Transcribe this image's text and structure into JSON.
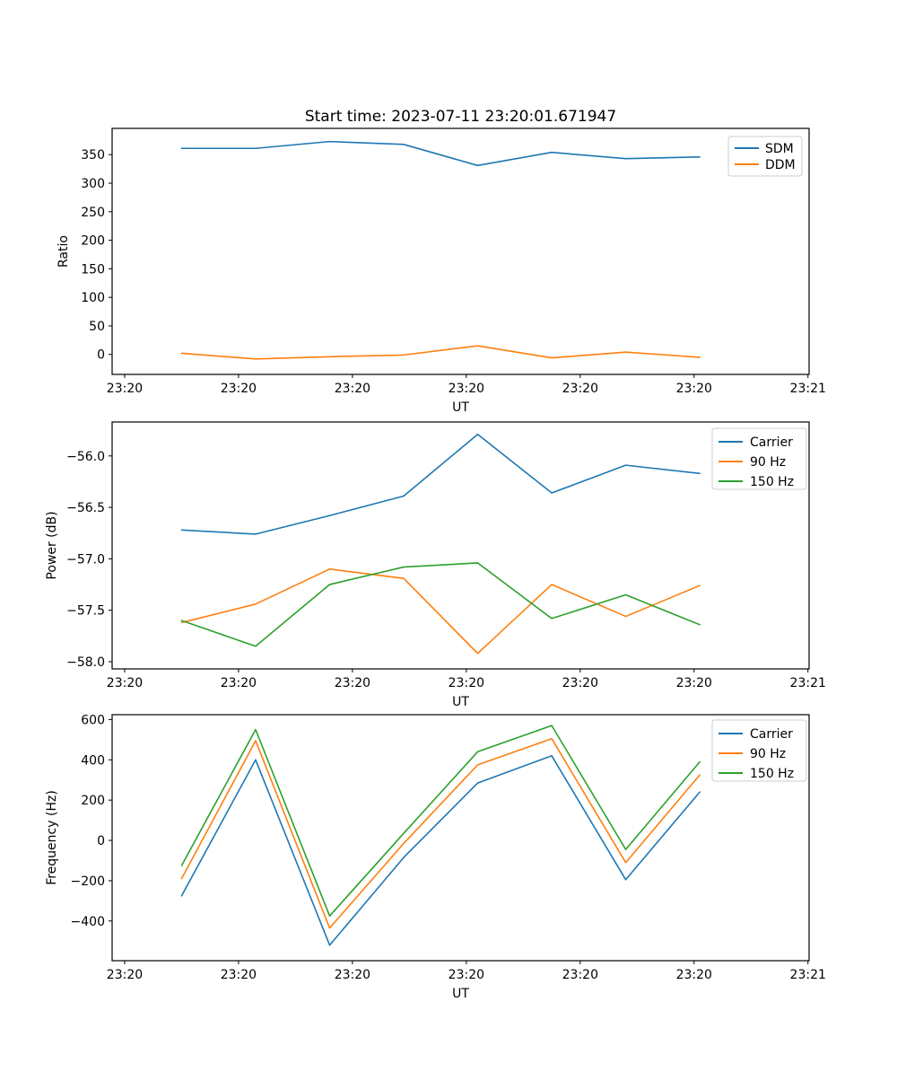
{
  "figure": {
    "title": "Start time: 2023-07-11 23:20:01.671947",
    "background": "#ffffff"
  },
  "colors": {
    "blue": "#1f77b4",
    "orange": "#ff7f0e",
    "green": "#2ca02c",
    "legend_edge": "#cccccc",
    "axis": "#000000"
  },
  "chart_data": [
    {
      "type": "line",
      "title": "Start time: 2023-07-11 23:20:01.671947",
      "xlabel": "UT",
      "ylabel": "Ratio",
      "grid": false,
      "legend_position": "upper right",
      "x_seconds_after_2320": [
        5.0,
        11.5,
        18.0,
        24.5,
        31.0,
        37.5,
        44.0,
        50.5
      ],
      "xlim": [
        -1.1,
        60.1
      ],
      "ylim": [
        -35,
        396
      ],
      "x_ticks": {
        "values": [
          0,
          10,
          20,
          30,
          40,
          50,
          60
        ],
        "labels": [
          "23:20",
          "23:20",
          "23:20",
          "23:20",
          "23:20",
          "23:20",
          "23:21"
        ]
      },
      "y_ticks": {
        "values": [
          0,
          50,
          100,
          150,
          200,
          250,
          300,
          350
        ],
        "labels": [
          "0",
          "50",
          "100",
          "150",
          "200",
          "250",
          "300",
          "350"
        ]
      },
      "series": [
        {
          "name": "SDM",
          "color": "#1f77b4",
          "values": [
            361,
            361,
            373,
            368,
            331,
            354,
            343,
            346
          ]
        },
        {
          "name": "DDM",
          "color": "#ff7f0e",
          "values": [
            2,
            -8,
            -4,
            -1,
            15,
            -6,
            4,
            -5
          ]
        }
      ]
    },
    {
      "type": "line",
      "title": "",
      "xlabel": "UT",
      "ylabel": "Power (dB)",
      "grid": false,
      "legend_position": "upper right",
      "x_seconds_after_2320": [
        5.0,
        11.5,
        18.0,
        24.5,
        31.0,
        37.5,
        44.0,
        50.5
      ],
      "xlim": [
        -1.1,
        60.1
      ],
      "ylim": [
        -58.07,
        -55.67
      ],
      "x_ticks": {
        "values": [
          0,
          10,
          20,
          30,
          40,
          50,
          60
        ],
        "labels": [
          "23:20",
          "23:20",
          "23:20",
          "23:20",
          "23:20",
          "23:20",
          "23:21"
        ]
      },
      "y_ticks": {
        "values": [
          -56.0,
          -56.5,
          -57.0,
          -57.5,
          -58.0
        ],
        "labels": [
          "−56.0",
          "−56.5",
          "−57.0",
          "−57.5",
          "−58.0"
        ]
      },
      "series": [
        {
          "name": "Carrier",
          "color": "#1f77b4",
          "values": [
            -56.72,
            -56.76,
            -56.58,
            -56.39,
            -55.79,
            -56.36,
            -56.09,
            -56.17
          ]
        },
        {
          "name": "90 Hz",
          "color": "#ff7f0e",
          "values": [
            -57.62,
            -57.44,
            -57.1,
            -57.19,
            -57.92,
            -57.25,
            -57.56,
            -57.26
          ]
        },
        {
          "name": "150 Hz",
          "color": "#2ca02c",
          "values": [
            -57.6,
            -57.85,
            -57.25,
            -57.08,
            -57.04,
            -57.58,
            -57.35,
            -57.64
          ]
        }
      ]
    },
    {
      "type": "line",
      "title": "",
      "xlabel": "UT",
      "ylabel": "Frequency (Hz)",
      "grid": false,
      "legend_position": "upper right",
      "x_seconds_after_2320": [
        5.0,
        11.5,
        18.0,
        24.5,
        31.0,
        37.5,
        44.0,
        50.5
      ],
      "xlim": [
        -1.1,
        60.1
      ],
      "ylim": [
        -597,
        624
      ],
      "x_ticks": {
        "values": [
          0,
          10,
          20,
          30,
          40,
          50,
          60
        ],
        "labels": [
          "23:20",
          "23:20",
          "23:20",
          "23:20",
          "23:20",
          "23:20",
          "23:21"
        ]
      },
      "y_ticks": {
        "values": [
          600,
          400,
          200,
          0,
          -200,
          -400
        ],
        "labels": [
          "600",
          "400",
          "200",
          "0",
          "−200",
          "−400"
        ]
      },
      "series": [
        {
          "name": "Carrier",
          "color": "#1f77b4",
          "values": [
            -275,
            400,
            -520,
            -85,
            285,
            420,
            -195,
            240
          ]
        },
        {
          "name": "90 Hz",
          "color": "#ff7f0e",
          "values": [
            -190,
            495,
            -435,
            -15,
            375,
            505,
            -110,
            325
          ]
        },
        {
          "name": "150 Hz",
          "color": "#2ca02c",
          "values": [
            -125,
            550,
            -375,
            35,
            440,
            570,
            -45,
            390
          ]
        }
      ]
    }
  ]
}
